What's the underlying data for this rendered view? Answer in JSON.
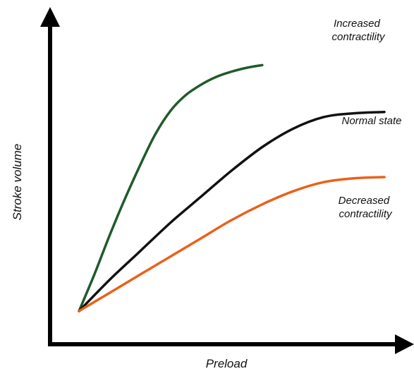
{
  "chart_data": {
    "type": "line",
    "xlabel": "Preload",
    "ylabel": "Stroke volume",
    "xlim": [
      0,
      100
    ],
    "ylim": [
      0,
      100
    ],
    "ticks": "none",
    "grid": false,
    "legend": "inline labels at right end of curves",
    "series": [
      {
        "name": "Increased contractility",
        "label_lines": [
          "Increased",
          "contractility"
        ],
        "color": "#1f5b2a",
        "x": [
          0,
          5,
          10,
          15,
          20,
          25,
          30,
          35,
          40,
          45,
          50,
          55,
          60
        ],
        "y": [
          0,
          14,
          29,
          43,
          56,
          68,
          77,
          83,
          87,
          90,
          92,
          93.5,
          94.5
        ]
      },
      {
        "name": "Normal state",
        "label_lines": [
          "Normal state"
        ],
        "color": "#111111",
        "x": [
          0,
          10,
          20,
          30,
          40,
          50,
          60,
          70,
          80,
          90,
          100
        ],
        "y": [
          0,
          12,
          23,
          34,
          44,
          54,
          63,
          70,
          74.5,
          76,
          76.5
        ]
      },
      {
        "name": "Decreased contractility",
        "label_lines": [
          "Decreased",
          "contractility"
        ],
        "color": "#e8621a",
        "x": [
          0,
          10,
          20,
          30,
          40,
          50,
          60,
          70,
          80,
          90,
          100
        ],
        "y": [
          0,
          7,
          14,
          21,
          28,
          35,
          41,
          46,
          49.5,
          51,
          51.5
        ]
      }
    ]
  }
}
